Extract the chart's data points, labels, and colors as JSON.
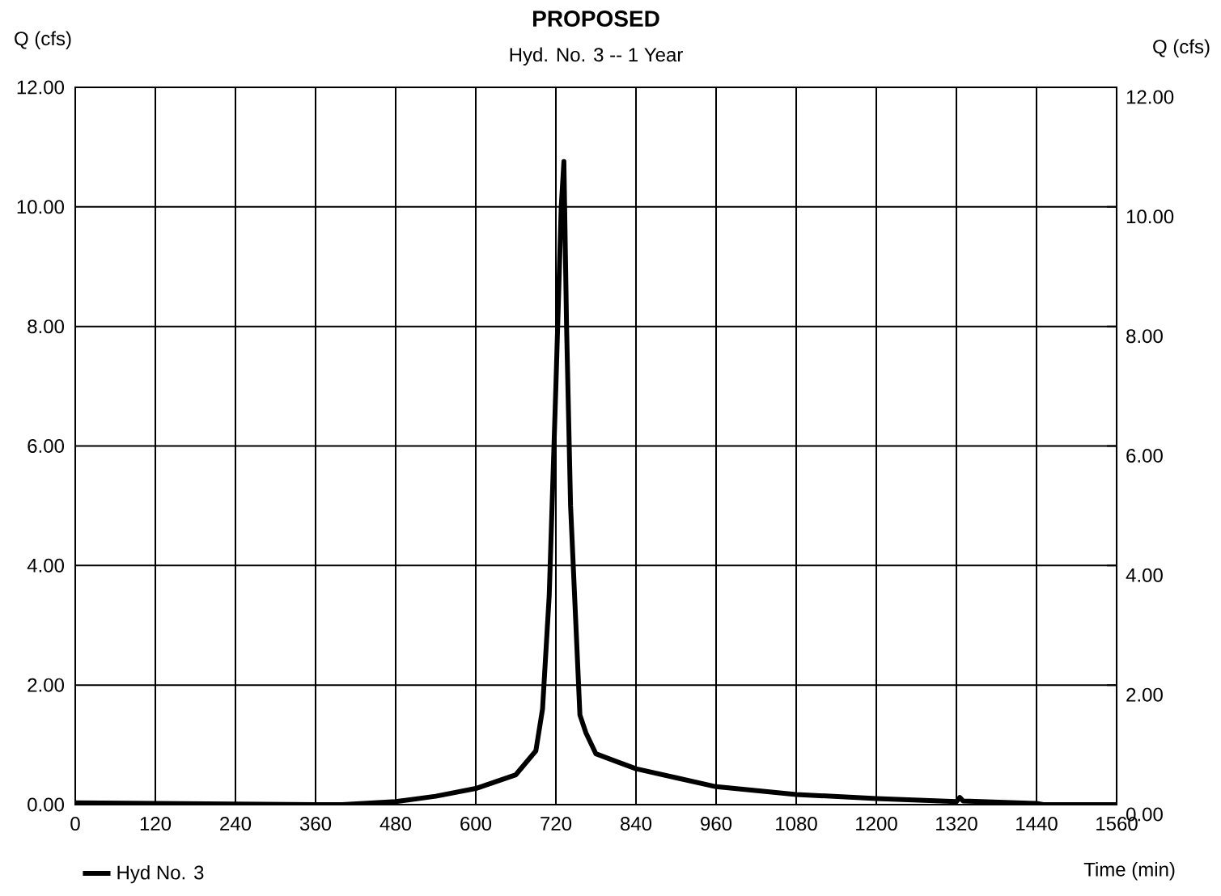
{
  "chart_data": {
    "type": "line",
    "title": "**PROPOSED**",
    "subtitle": "Hyd. No. 3 -- 1 Year",
    "xlabel": "Time (min)",
    "ylabel": "Q (cfs)",
    "y2label": "Q (cfs)",
    "x": [
      0,
      120,
      240,
      360,
      400,
      480,
      540,
      600,
      660,
      690,
      700,
      710,
      720,
      728,
      732,
      736,
      742,
      750,
      756,
      765,
      780,
      840,
      900,
      960,
      1080,
      1200,
      1320,
      1325,
      1330,
      1440,
      1450,
      1560
    ],
    "series": [
      {
        "name": "Hyd No. 3",
        "color": "#000000",
        "values": [
          0.03,
          0.02,
          0.01,
          0.0,
          0.0,
          0.05,
          0.14,
          0.27,
          0.5,
          0.9,
          1.6,
          3.5,
          7.0,
          10.0,
          10.76,
          8.0,
          5.0,
          3.0,
          1.5,
          1.2,
          0.85,
          0.6,
          0.45,
          0.3,
          0.17,
          0.1,
          0.05,
          0.12,
          0.06,
          0.02,
          0.0,
          0.0
        ]
      }
    ],
    "xlim": [
      0,
      1560
    ],
    "xticks": [
      0,
      120,
      240,
      360,
      480,
      600,
      720,
      840,
      960,
      1080,
      1200,
      1320,
      1440,
      1560
    ],
    "ylim": [
      0,
      12
    ],
    "yticks": [
      {
        "value": 0,
        "label": "0.00"
      },
      {
        "value": 2,
        "label": "2.00"
      },
      {
        "value": 4,
        "label": "4.00"
      },
      {
        "value": 6,
        "label": "6.00"
      },
      {
        "value": 8,
        "label": "8.00"
      },
      {
        "value": 10,
        "label": "10.00"
      },
      {
        "value": 12,
        "label": "12.00"
      }
    ],
    "y2lim": [
      0,
      12
    ],
    "y2ticks": [
      {
        "value": 0,
        "label": "0.00"
      },
      {
        "value": 2,
        "label": "2.00"
      },
      {
        "value": 4,
        "label": "4.00"
      },
      {
        "value": 6,
        "label": "6.00"
      },
      {
        "value": 8,
        "label": "8.00"
      },
      {
        "value": 10,
        "label": "10.00"
      },
      {
        "value": 12,
        "label": "12.00"
      }
    ],
    "grid": true,
    "legend": "bottom left"
  }
}
